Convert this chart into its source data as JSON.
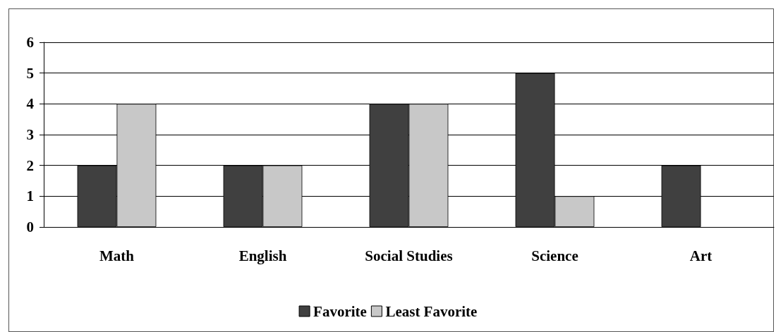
{
  "chart_data": {
    "type": "bar",
    "categories": [
      "Math",
      "English",
      "Social Studies",
      "Science",
      "Art"
    ],
    "series": [
      {
        "name": "Favorite",
        "color": "#404040",
        "values": [
          2,
          2,
          4,
          5,
          2
        ]
      },
      {
        "name": "Least Favorite",
        "color": "#c8c8c8",
        "values": [
          4,
          2,
          4,
          1,
          0
        ]
      }
    ],
    "ylim": [
      0,
      6
    ],
    "yticks": [
      0,
      1,
      2,
      3,
      4,
      5,
      6
    ],
    "grid": "y",
    "legend": "bottom"
  }
}
